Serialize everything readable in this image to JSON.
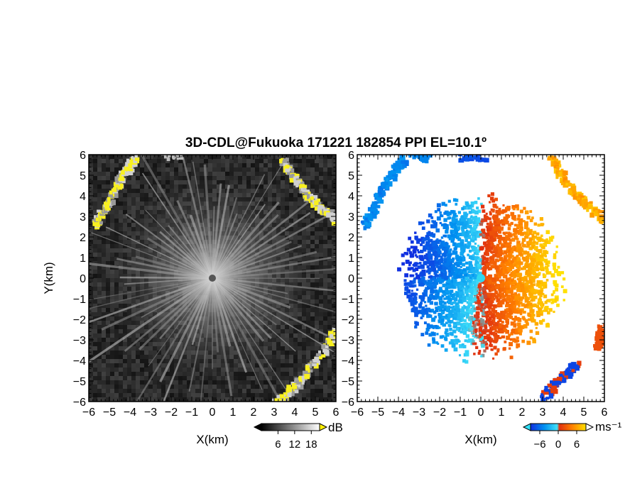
{
  "title": "3D-CDL@Fukuoka 171221 182854 PPI EL=10.1º",
  "chart_data": [
    {
      "type": "heatmap",
      "panel": "left",
      "field": "signal intensity",
      "xlabel": "X(km)",
      "ylabel": "Y(km)",
      "xlim": [
        -6,
        6
      ],
      "ylim": [
        -6,
        6
      ],
      "xticks": [
        "−6",
        "−5",
        "−4",
        "−3",
        "−2",
        "−1",
        "0",
        "1",
        "2",
        "3",
        "4",
        "5",
        "6"
      ],
      "yticks": [
        "−6",
        "−5",
        "−4",
        "−3",
        "−2",
        "−1",
        "0",
        "1",
        "2",
        "3",
        "4",
        "5",
        "6"
      ],
      "colorbar": {
        "unit": "dB",
        "ticks": [
          "6",
          "12",
          "18"
        ],
        "range": [
          0,
          21
        ]
      },
      "features": [
        {
          "kind": "cloud-echo-yellow",
          "x": [
            -5.7,
            -3.9
          ],
          "y": [
            2.5,
            5.8
          ]
        },
        {
          "kind": "cloud-echo-yellow",
          "x": [
            3.5,
            5.9
          ],
          "y": [
            2.8,
            6.0
          ]
        },
        {
          "kind": "cloud-echo-yellow",
          "x": [
            3.0,
            6.0
          ],
          "y": [
            -6.0,
            -2.3
          ]
        }
      ]
    },
    {
      "type": "heatmap",
      "panel": "right",
      "field": "radial velocity",
      "xlabel": "X(km)",
      "xlim": [
        -6,
        6
      ],
      "ylim": [
        -6,
        6
      ],
      "xticks": [
        "−6",
        "−5",
        "−4",
        "−3",
        "−2",
        "−1",
        "0",
        "1",
        "2",
        "3",
        "4",
        "5",
        "6"
      ],
      "yticks": [
        "−6",
        "−5",
        "−4",
        "−3",
        "−2",
        "−1",
        "0",
        "1",
        "2",
        "3",
        "4",
        "5",
        "6"
      ],
      "colorbar": {
        "unit": "ms⁻¹",
        "ticks": [
          "−6",
          "0",
          "6"
        ],
        "range": [
          -9,
          9
        ]
      },
      "velocity_pattern": "negative (blue) to the west, positive (orange) to the east of the radar at origin"
    }
  ],
  "colors": {
    "velocity_neg": "#1040e0",
    "velocity_zero": "#30d8f0",
    "velocity_pos": "#ffd000",
    "velocity_strong_pos": "#e02000",
    "echo_yellow": "#f8f020"
  }
}
